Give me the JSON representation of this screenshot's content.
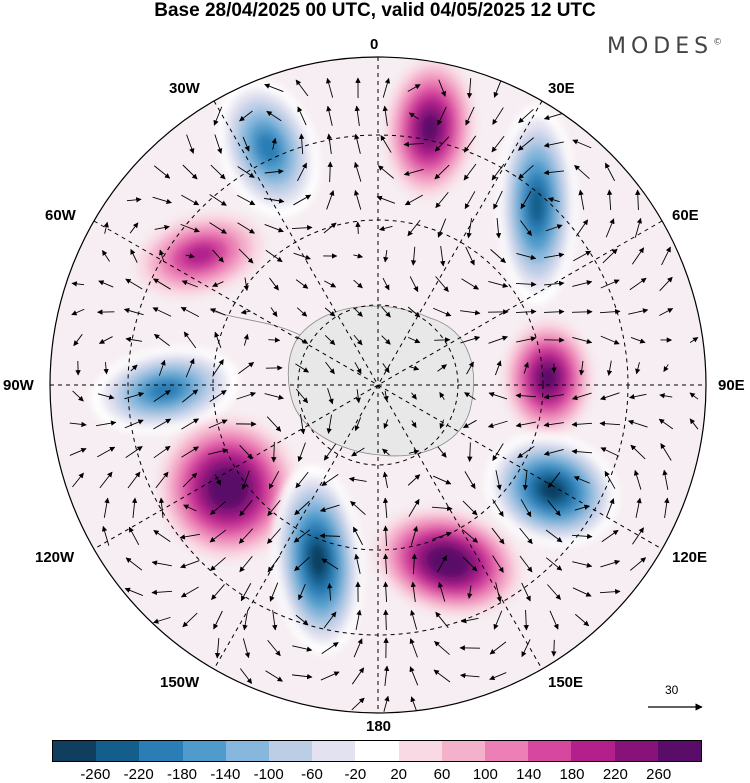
{
  "title": "Base 28/04/2025 00 UTC, valid 04/05/2025 12 UTC",
  "brand": "MODES",
  "brand_mark": "©",
  "map": {
    "projection": "south polar stereographic",
    "longitude_labels": {
      "top": "0",
      "bottom": "180",
      "left": "90W",
      "right": "90E",
      "upper_left_1": "30W",
      "upper_left_2": "60W",
      "upper_right_1": "30E",
      "upper_right_2": "60E",
      "lower_left_1": "120W",
      "lower_left_2": "150W",
      "lower_right_1": "120E",
      "lower_right_2": "150E"
    },
    "vector_scale": "30",
    "anomaly_centers": [
      {
        "lon_label": "near 20W",
        "sign": "negative",
        "level": -180
      },
      {
        "lon_label": "near 5E",
        "sign": "positive",
        "level": 220
      },
      {
        "lon_label": "near 30E",
        "sign": "negative",
        "level": -220
      },
      {
        "lon_label": "near 45W",
        "sign": "positive",
        "level": 140
      },
      {
        "lon_label": "near 75E",
        "sign": "positive",
        "level": 220
      },
      {
        "lon_label": "near 80W",
        "sign": "negative",
        "level": -180
      },
      {
        "lon_label": "near 125E",
        "sign": "negative",
        "level": -260
      },
      {
        "lon_label": "near 130W",
        "sign": "positive",
        "level": 260
      },
      {
        "lon_label": "near 160W",
        "sign": "negative",
        "level": -260
      },
      {
        "lon_label": "near 165E",
        "sign": "positive",
        "level": 260
      }
    ]
  },
  "colorbar": {
    "ticks": [
      "-260",
      "-220",
      "-180",
      "-140",
      "-100",
      "-60",
      "-20",
      "20",
      "60",
      "100",
      "140",
      "180",
      "220",
      "260"
    ],
    "colors": [
      "#0f3e5e",
      "#145e8c",
      "#2a7db5",
      "#4f9bcb",
      "#87b7dc",
      "#bccde6",
      "#e3e2f0",
      "#ffffff",
      "#f9d9e3",
      "#f4b1cc",
      "#ec80b6",
      "#d6489f",
      "#b3208c",
      "#86127a",
      "#5a0d68"
    ]
  }
}
